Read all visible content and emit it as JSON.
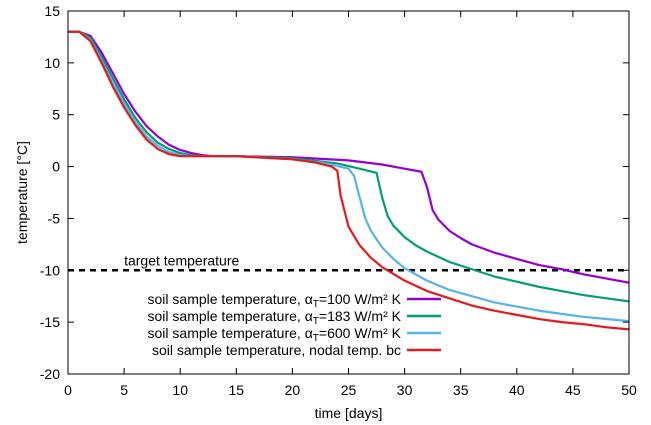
{
  "chart_data": {
    "type": "line",
    "xlabel": "time [days]",
    "ylabel": "temperature [°C]",
    "xlim": [
      0,
      50
    ],
    "ylim": [
      -20,
      15
    ],
    "xticks": [
      0,
      5,
      10,
      15,
      20,
      25,
      30,
      35,
      40,
      45,
      50
    ],
    "yticks": [
      -20,
      -15,
      -10,
      -5,
      0,
      5,
      10,
      15
    ],
    "grid": false,
    "legend_position": "bottom-left",
    "annotations": [
      {
        "text": "target temperature",
        "y": -10,
        "style": "dashed",
        "color": "#000000"
      }
    ],
    "series": [
      {
        "name_prefix": "soil sample temperature, α",
        "name_sub": "T",
        "name_suffix": "=100 W/m² K",
        "color": "#9400d3",
        "x": [
          0,
          1,
          2,
          3,
          4,
          5,
          6,
          7,
          8,
          9,
          10,
          11,
          12,
          13,
          15,
          20,
          25,
          28,
          30,
          31.5,
          32,
          32.5,
          33,
          34,
          35,
          36,
          38,
          40,
          42,
          44,
          46,
          48,
          50
        ],
        "y": [
          13,
          13,
          12.6,
          11,
          9,
          7,
          5.3,
          3.9,
          2.9,
          2.1,
          1.6,
          1.3,
          1.1,
          1,
          1,
          0.9,
          0.6,
          0.2,
          -0.2,
          -0.5,
          -2,
          -4.2,
          -5.1,
          -6.2,
          -6.9,
          -7.5,
          -8.3,
          -8.9,
          -9.5,
          -9.9,
          -10.4,
          -10.8,
          -11.2
        ]
      },
      {
        "name_prefix": "soil sample temperature, α",
        "name_sub": "T",
        "name_suffix": "=183 W/m² K",
        "color": "#009e73",
        "x": [
          0,
          1,
          2,
          3,
          4,
          5,
          6,
          7,
          8,
          9,
          10,
          11,
          12,
          13,
          15,
          20,
          24,
          26,
          27.5,
          28,
          28.5,
          29,
          30,
          31,
          32,
          34,
          36,
          38,
          40,
          42,
          44,
          46,
          48,
          50
        ],
        "y": [
          13,
          13,
          12.4,
          10.6,
          8.5,
          6.5,
          4.7,
          3.3,
          2.3,
          1.7,
          1.3,
          1.1,
          1,
          1,
          1,
          0.8,
          0.3,
          -0.2,
          -0.6,
          -3,
          -4.8,
          -5.7,
          -6.8,
          -7.6,
          -8.2,
          -9.2,
          -9.9,
          -10.6,
          -11.1,
          -11.6,
          -12,
          -12.4,
          -12.7,
          -13
        ]
      },
      {
        "name_prefix": "soil sample temperature, α",
        "name_sub": "T",
        "name_suffix": "=600 W/m² K",
        "color": "#56b4e9",
        "x": [
          0,
          1,
          2,
          3,
          4,
          5,
          6,
          7,
          8,
          9,
          10,
          11,
          12,
          15,
          20,
          23,
          25,
          25.5,
          26,
          26.5,
          27,
          28,
          29,
          30,
          32,
          34,
          36,
          38,
          40,
          42,
          44,
          46,
          48,
          50
        ],
        "y": [
          13,
          13,
          12.2,
          10.2,
          8,
          6.1,
          4.3,
          2.9,
          2,
          1.4,
          1.1,
          1,
          1,
          1,
          0.7,
          0.3,
          -0.2,
          -0.9,
          -3,
          -5,
          -6.2,
          -7.8,
          -8.9,
          -9.8,
          -11,
          -11.9,
          -12.5,
          -13.1,
          -13.5,
          -13.9,
          -14.2,
          -14.5,
          -14.7,
          -14.9
        ]
      },
      {
        "name_prefix": "soil sample temperature, nodal temp. bc",
        "name_sub": "",
        "name_suffix": "",
        "color": "#e41a1c",
        "x": [
          0,
          1,
          2,
          3,
          4,
          5,
          6,
          7,
          8,
          9,
          10,
          11,
          12,
          15,
          20,
          22,
          23.5,
          24,
          24.3,
          24.7,
          25,
          26,
          27,
          28,
          30,
          32,
          34,
          36,
          38,
          40,
          42,
          44,
          46,
          48,
          50
        ],
        "y": [
          13,
          13,
          12.1,
          10,
          7.7,
          5.7,
          4,
          2.6,
          1.7,
          1.2,
          1,
          1,
          1,
          1,
          0.7,
          0.4,
          0,
          -0.4,
          -2.8,
          -4.5,
          -5.8,
          -7.6,
          -8.8,
          -9.7,
          -11,
          -12,
          -12.7,
          -13.4,
          -13.9,
          -14.3,
          -14.7,
          -15,
          -15.2,
          -15.5,
          -15.7
        ]
      }
    ]
  }
}
